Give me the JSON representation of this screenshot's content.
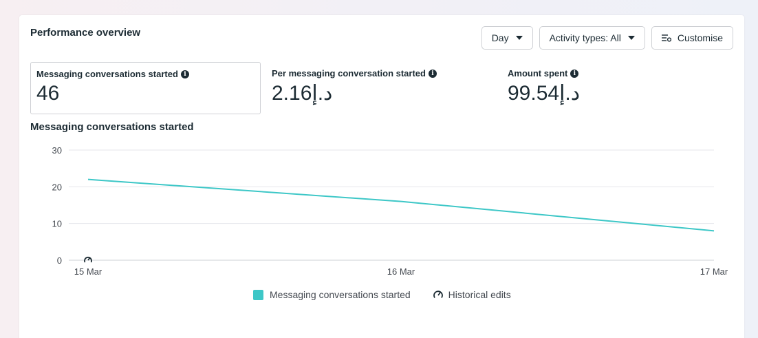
{
  "panel": {
    "title": "Performance overview"
  },
  "controls": {
    "day_label": "Day",
    "activity_label": "Activity types: All",
    "customise_label": "Customise"
  },
  "metrics": [
    {
      "label": "Messaging conversations started",
      "value": "46",
      "selected": true
    },
    {
      "label": "Per messaging conversation started",
      "value": "2.16د.إ",
      "selected": false
    },
    {
      "label": "Amount spent",
      "value": "99.54د.إ",
      "selected": false
    }
  ],
  "icons": {
    "info": "info-icon",
    "caret": "caret-down-icon",
    "customise": "sliders-settings-icon",
    "historical_edits": "gauge-edit-icon"
  },
  "chart_data": {
    "type": "line",
    "title": "Messaging conversations started",
    "x": [
      "15 Mar",
      "16 Mar",
      "17 Mar"
    ],
    "series": [
      {
        "name": "Messaging conversations started",
        "values": [
          22,
          16,
          8
        ],
        "color": "#3dc7c7"
      }
    ],
    "ylim": [
      0,
      30
    ],
    "yticks": [
      0,
      10,
      20,
      30
    ],
    "grid": true,
    "legend_position": "bottom-center",
    "historical_edits": [
      {
        "x": "15 Mar",
        "label": "Historical edits"
      }
    ]
  },
  "legend": {
    "series_label": "Messaging conversations started",
    "historical_label": "Historical edits"
  },
  "colors": {
    "series": "#3dc7c7",
    "grid": "#e4e6eb",
    "text": "#1c2b33"
  }
}
